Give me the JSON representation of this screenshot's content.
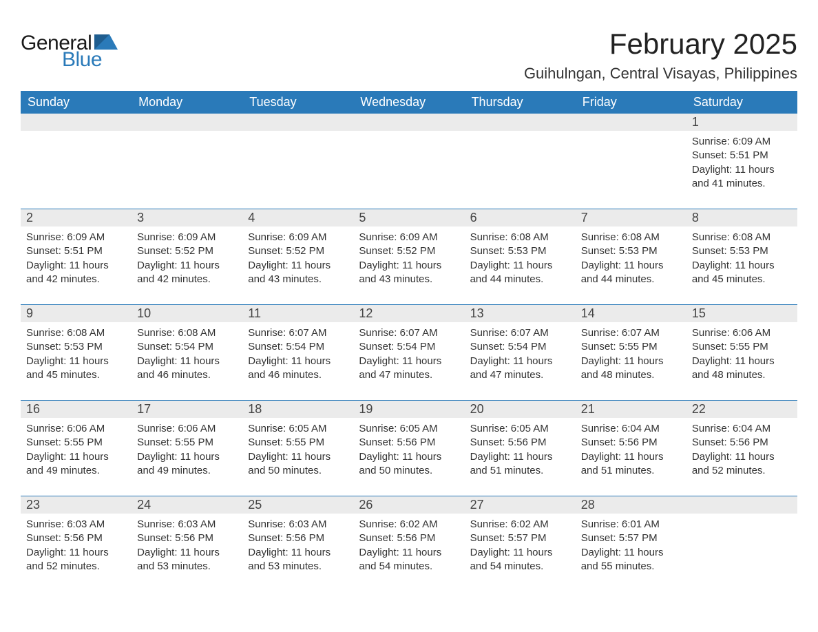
{
  "brand": {
    "general": "General",
    "blue": "Blue",
    "accent": "#2a7ab9"
  },
  "title": "February 2025",
  "location": "Guihulngan, Central Visayas, Philippines",
  "day_headers": [
    "Sunday",
    "Monday",
    "Tuesday",
    "Wednesday",
    "Thursday",
    "Friday",
    "Saturday"
  ],
  "colors": {
    "header_bg": "#2a7ab9",
    "header_text": "#ffffff",
    "daynum_bg": "#ebebeb",
    "text": "#333333",
    "rule": "#2a7ab9",
    "background": "#ffffff"
  },
  "typography": {
    "title_fontsize": 42,
    "location_fontsize": 22,
    "header_fontsize": 18,
    "daynum_fontsize": 18,
    "detail_fontsize": 15,
    "logo_fontsize": 30
  },
  "labels": {
    "sunrise": "Sunrise: ",
    "sunset": "Sunset: ",
    "daylight": "Daylight: "
  },
  "weeks": [
    [
      null,
      null,
      null,
      null,
      null,
      null,
      {
        "n": "1",
        "sunrise": "6:09 AM",
        "sunset": "5:51 PM",
        "daylight": "11 hours and 41 minutes."
      }
    ],
    [
      {
        "n": "2",
        "sunrise": "6:09 AM",
        "sunset": "5:51 PM",
        "daylight": "11 hours and 42 minutes."
      },
      {
        "n": "3",
        "sunrise": "6:09 AM",
        "sunset": "5:52 PM",
        "daylight": "11 hours and 42 minutes."
      },
      {
        "n": "4",
        "sunrise": "6:09 AM",
        "sunset": "5:52 PM",
        "daylight": "11 hours and 43 minutes."
      },
      {
        "n": "5",
        "sunrise": "6:09 AM",
        "sunset": "5:52 PM",
        "daylight": "11 hours and 43 minutes."
      },
      {
        "n": "6",
        "sunrise": "6:08 AM",
        "sunset": "5:53 PM",
        "daylight": "11 hours and 44 minutes."
      },
      {
        "n": "7",
        "sunrise": "6:08 AM",
        "sunset": "5:53 PM",
        "daylight": "11 hours and 44 minutes."
      },
      {
        "n": "8",
        "sunrise": "6:08 AM",
        "sunset": "5:53 PM",
        "daylight": "11 hours and 45 minutes."
      }
    ],
    [
      {
        "n": "9",
        "sunrise": "6:08 AM",
        "sunset": "5:53 PM",
        "daylight": "11 hours and 45 minutes."
      },
      {
        "n": "10",
        "sunrise": "6:08 AM",
        "sunset": "5:54 PM",
        "daylight": "11 hours and 46 minutes."
      },
      {
        "n": "11",
        "sunrise": "6:07 AM",
        "sunset": "5:54 PM",
        "daylight": "11 hours and 46 minutes."
      },
      {
        "n": "12",
        "sunrise": "6:07 AM",
        "sunset": "5:54 PM",
        "daylight": "11 hours and 47 minutes."
      },
      {
        "n": "13",
        "sunrise": "6:07 AM",
        "sunset": "5:54 PM",
        "daylight": "11 hours and 47 minutes."
      },
      {
        "n": "14",
        "sunrise": "6:07 AM",
        "sunset": "5:55 PM",
        "daylight": "11 hours and 48 minutes."
      },
      {
        "n": "15",
        "sunrise": "6:06 AM",
        "sunset": "5:55 PM",
        "daylight": "11 hours and 48 minutes."
      }
    ],
    [
      {
        "n": "16",
        "sunrise": "6:06 AM",
        "sunset": "5:55 PM",
        "daylight": "11 hours and 49 minutes."
      },
      {
        "n": "17",
        "sunrise": "6:06 AM",
        "sunset": "5:55 PM",
        "daylight": "11 hours and 49 minutes."
      },
      {
        "n": "18",
        "sunrise": "6:05 AM",
        "sunset": "5:55 PM",
        "daylight": "11 hours and 50 minutes."
      },
      {
        "n": "19",
        "sunrise": "6:05 AM",
        "sunset": "5:56 PM",
        "daylight": "11 hours and 50 minutes."
      },
      {
        "n": "20",
        "sunrise": "6:05 AM",
        "sunset": "5:56 PM",
        "daylight": "11 hours and 51 minutes."
      },
      {
        "n": "21",
        "sunrise": "6:04 AM",
        "sunset": "5:56 PM",
        "daylight": "11 hours and 51 minutes."
      },
      {
        "n": "22",
        "sunrise": "6:04 AM",
        "sunset": "5:56 PM",
        "daylight": "11 hours and 52 minutes."
      }
    ],
    [
      {
        "n": "23",
        "sunrise": "6:03 AM",
        "sunset": "5:56 PM",
        "daylight": "11 hours and 52 minutes."
      },
      {
        "n": "24",
        "sunrise": "6:03 AM",
        "sunset": "5:56 PM",
        "daylight": "11 hours and 53 minutes."
      },
      {
        "n": "25",
        "sunrise": "6:03 AM",
        "sunset": "5:56 PM",
        "daylight": "11 hours and 53 minutes."
      },
      {
        "n": "26",
        "sunrise": "6:02 AM",
        "sunset": "5:56 PM",
        "daylight": "11 hours and 54 minutes."
      },
      {
        "n": "27",
        "sunrise": "6:02 AM",
        "sunset": "5:57 PM",
        "daylight": "11 hours and 54 minutes."
      },
      {
        "n": "28",
        "sunrise": "6:01 AM",
        "sunset": "5:57 PM",
        "daylight": "11 hours and 55 minutes."
      },
      null
    ]
  ]
}
